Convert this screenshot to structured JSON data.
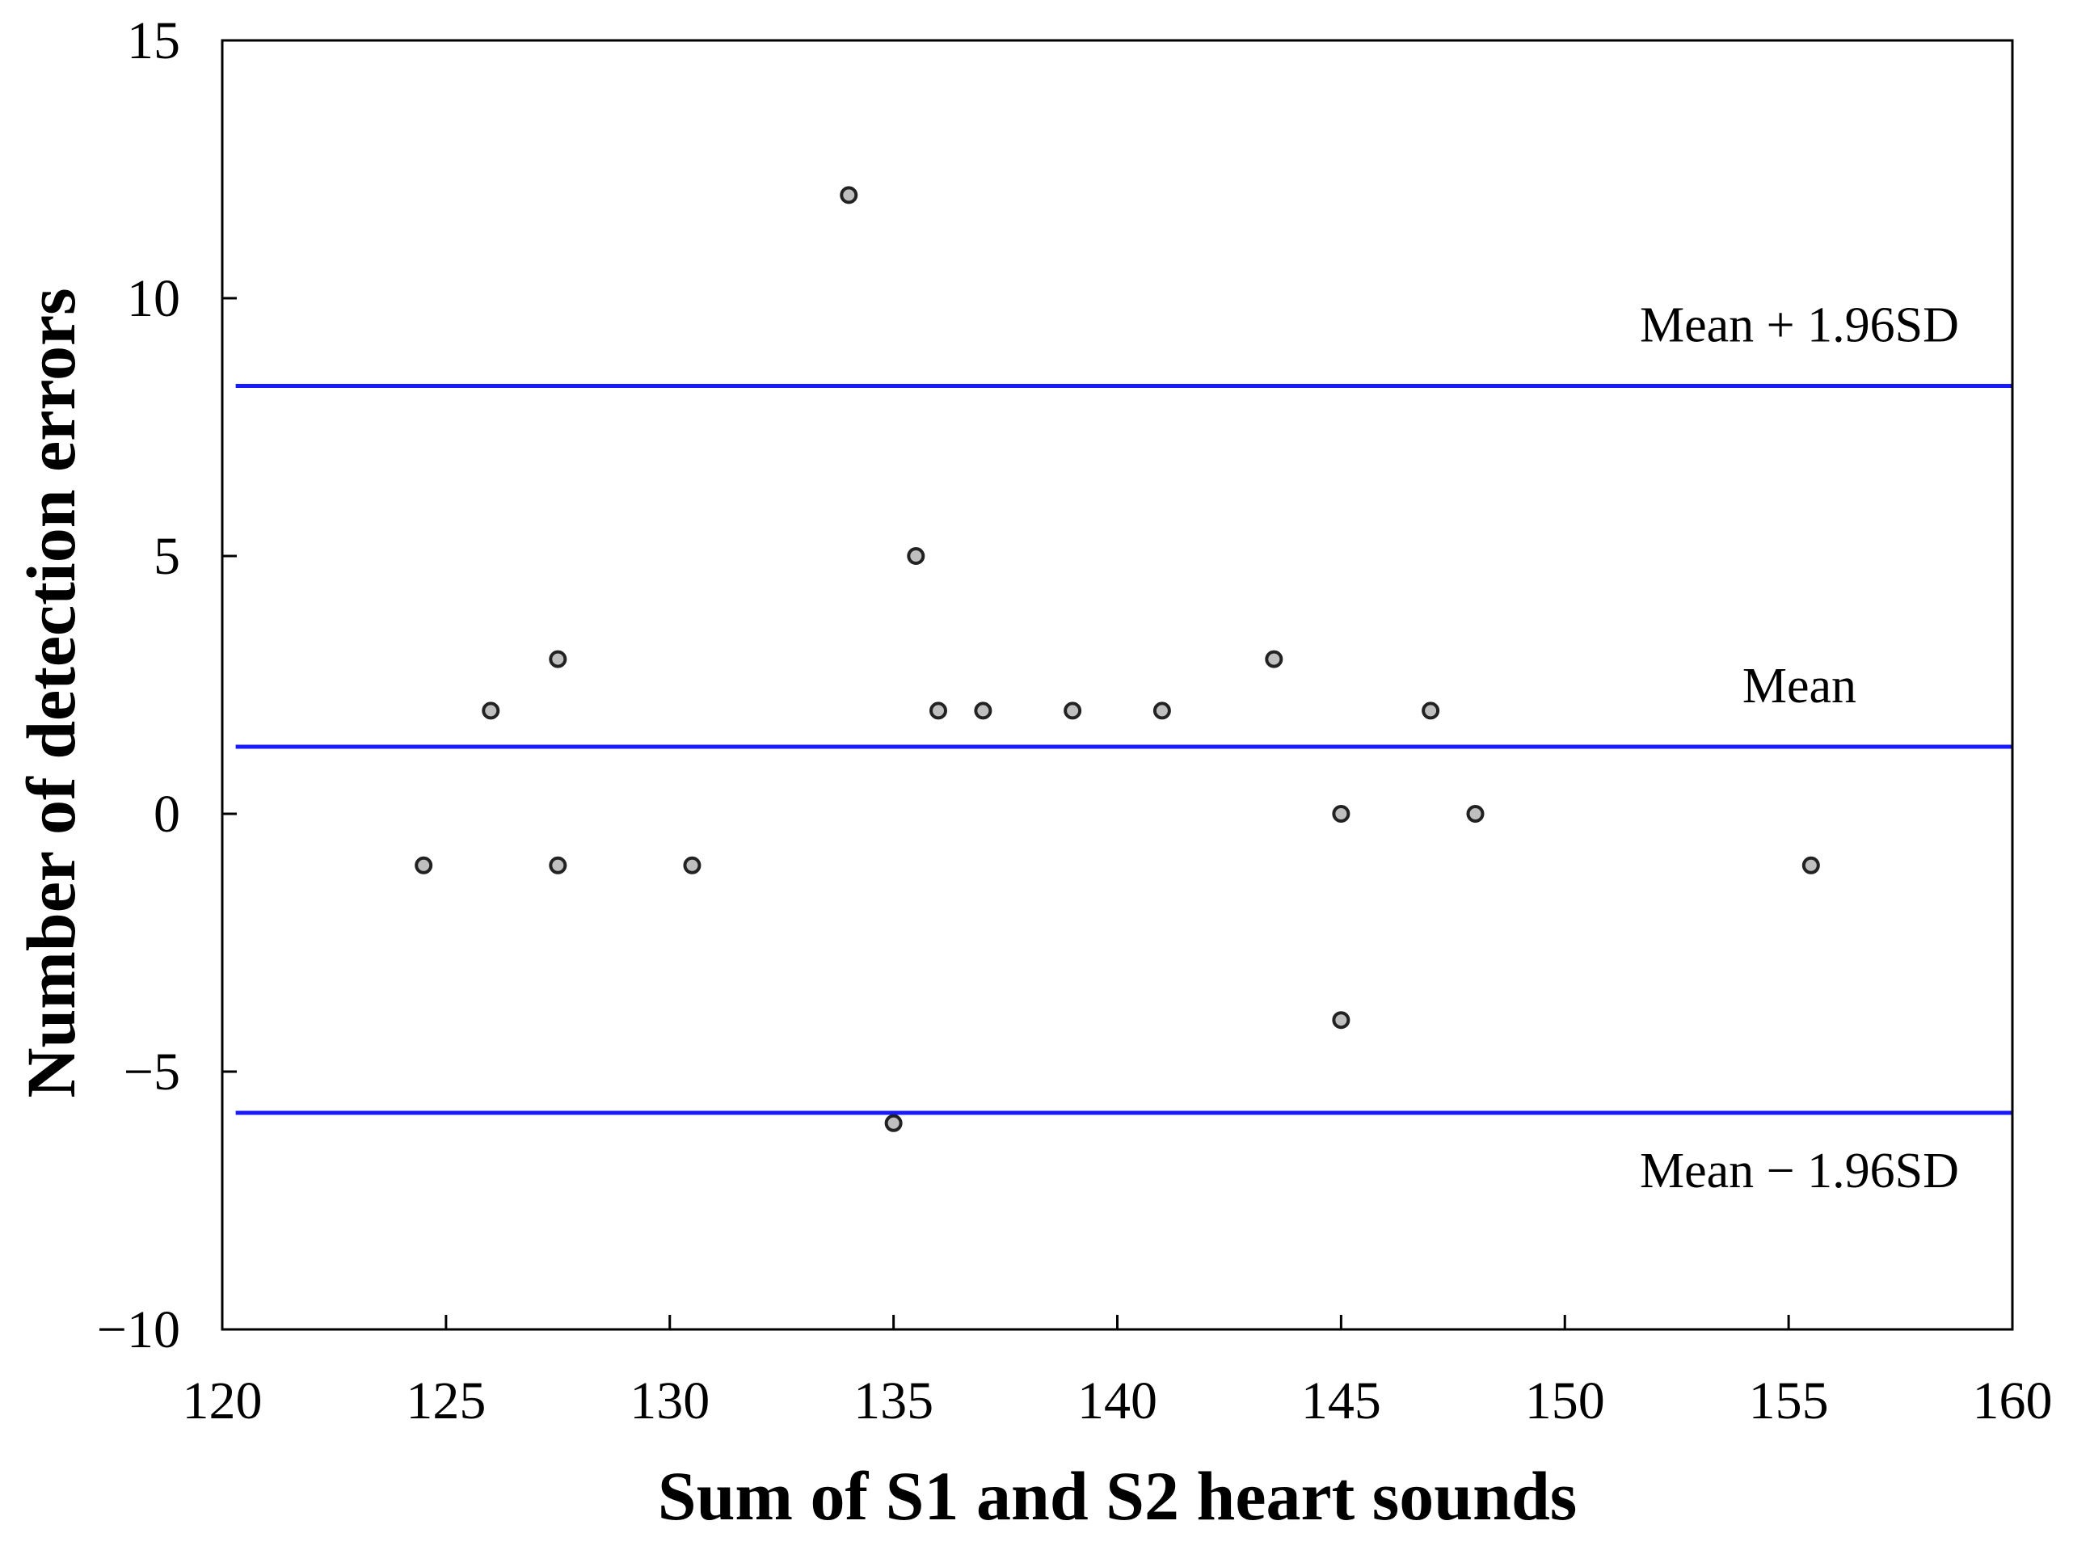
{
  "chart_data": {
    "type": "scatter",
    "title": "",
    "xlabel": "Sum of S1 and S2 heart sounds",
    "ylabel": "Number of detection errors",
    "xlim": [
      120,
      160
    ],
    "ylim": [
      -10,
      15
    ],
    "xticks": [
      120,
      125,
      130,
      135,
      140,
      145,
      150,
      155,
      160
    ],
    "yticks": [
      -10,
      -5,
      0,
      5,
      10,
      15
    ],
    "xtick_labels": [
      "120",
      "125",
      "130",
      "135",
      "140",
      "145",
      "150",
      "155",
      "160"
    ],
    "ytick_labels": [
      "−10",
      "−5",
      "0",
      "5",
      "10",
      "15"
    ],
    "grid": false,
    "legend": "none",
    "series": [
      {
        "name": "detection errors",
        "marker": "circle",
        "color": "#bfbfbf",
        "edge_color": "#222222",
        "x": [
          124.5,
          126,
          127.5,
          127.5,
          130.5,
          134,
          135,
          135.5,
          136,
          137,
          139,
          141,
          143.5,
          145,
          145,
          147,
          148,
          155.5
        ],
        "y": [
          -1,
          2,
          3,
          -1,
          -1,
          12,
          -6,
          5,
          2,
          2,
          2,
          2,
          3,
          0,
          -4,
          2,
          0,
          -1
        ]
      }
    ],
    "reference_lines": [
      {
        "name": "upper-limit",
        "y": 8.3,
        "color": "#1a1aff",
        "label": "Mean + 1.96SD",
        "label_position": "above-right"
      },
      {
        "name": "mean",
        "y": 1.3,
        "color": "#1a1aff",
        "label": "Mean",
        "label_position": "above-right"
      },
      {
        "name": "lower-limit",
        "y": -5.8,
        "color": "#1a1aff",
        "label": "Mean − 1.96SD",
        "label_position": "below-right"
      }
    ]
  }
}
